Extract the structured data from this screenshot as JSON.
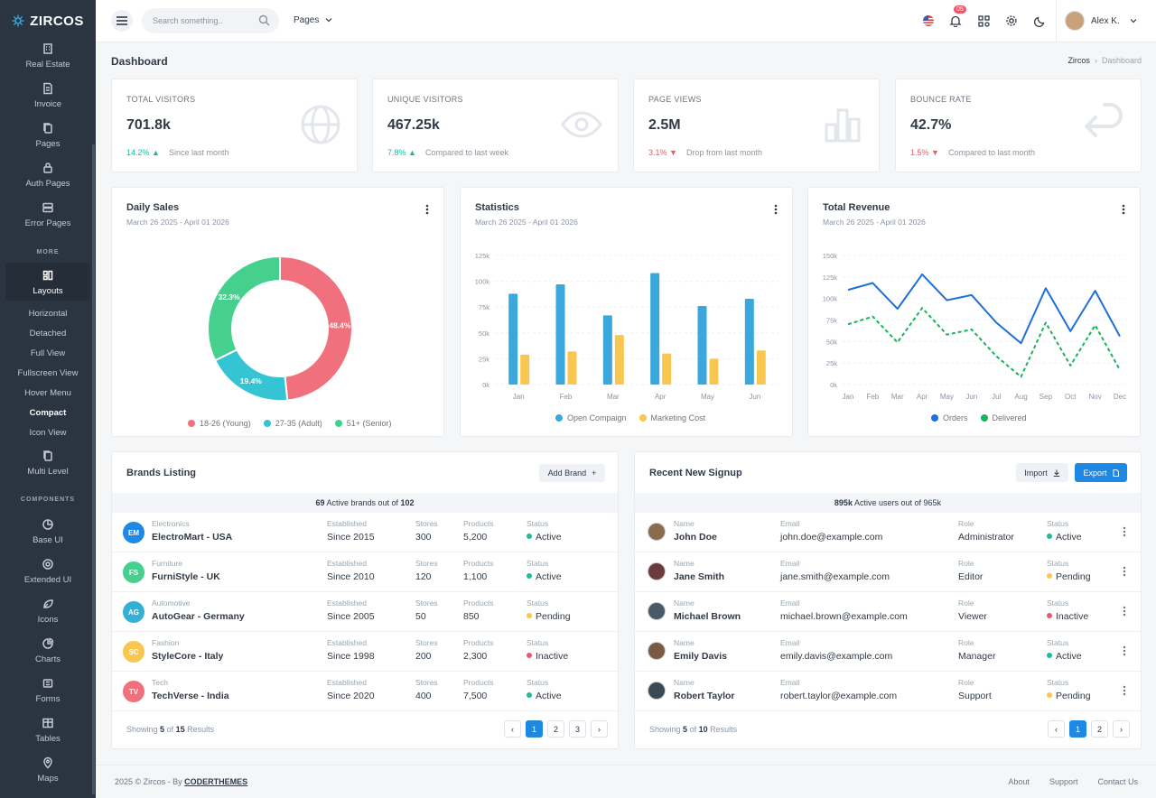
{
  "brand": {
    "name": "ZIRCOS"
  },
  "sidebar": {
    "items": [
      {
        "label": "Real Estate",
        "icon": "building-icon"
      },
      {
        "label": "Invoice",
        "icon": "invoice-icon"
      },
      {
        "label": "Pages",
        "icon": "pages-icon"
      },
      {
        "label": "Auth Pages",
        "icon": "lock-icon"
      },
      {
        "label": "Error Pages",
        "icon": "server-icon"
      }
    ],
    "more_heading": "MORE",
    "layouts": {
      "label": "Layouts",
      "icon": "layouts-icon"
    },
    "layout_sub": [
      "Horizontal",
      "Detached",
      "Full View",
      "Fullscreen View",
      "Hover Menu",
      "Compact",
      "Icon View"
    ],
    "multi_level": {
      "label": "Multi Level",
      "icon": "copy-icon"
    },
    "components_heading": "COMPONENTS",
    "components": [
      {
        "label": "Base UI",
        "icon": "pie-icon"
      },
      {
        "label": "Extended UI",
        "icon": "life-buoy-icon"
      },
      {
        "label": "Icons",
        "icon": "leaf-icon"
      },
      {
        "label": "Charts",
        "icon": "chart-icon"
      },
      {
        "label": "Forms",
        "icon": "form-icon"
      },
      {
        "label": "Tables",
        "icon": "table-icon"
      },
      {
        "label": "Maps",
        "icon": "map-pin-icon"
      }
    ]
  },
  "topbar": {
    "search_placeholder": "Search something..",
    "pages_label": "Pages",
    "notif_count": "05",
    "user_name": "Alex K."
  },
  "page": {
    "title": "Dashboard",
    "crumb_root": "Zircos",
    "crumb_current": "Dashboard"
  },
  "kpis": [
    {
      "label": "TOTAL VISITORS",
      "value": "701.8k",
      "delta": "14.2%",
      "dir": "up",
      "note": "Since last month",
      "icon": "globe-icon"
    },
    {
      "label": "UNIQUE VISITORS",
      "value": "467.25k",
      "delta": "7.8%",
      "dir": "up",
      "note": "Compared to last week",
      "icon": "eye-icon"
    },
    {
      "label": "PAGE VIEWS",
      "value": "2.5M",
      "delta": "3.1%",
      "dir": "down",
      "note": "Drop from last month",
      "icon": "bar-chart-icon"
    },
    {
      "label": "BOUNCE RATE",
      "value": "42.7%",
      "delta": "1.5%",
      "dir": "down",
      "note": "Compared to last month",
      "icon": "return-arrow-icon"
    }
  ],
  "charts": {
    "daily": {
      "title": "Daily Sales",
      "range": "March 26 2025 - April 01 2026"
    },
    "stats": {
      "title": "Statistics",
      "range": "March 26 2025 - April 01 2026"
    },
    "revenue": {
      "title": "Total Revenue",
      "range": "March 26 2025 - April 01 2026"
    }
  },
  "chart_data": [
    {
      "type": "pie",
      "title": "Daily Sales",
      "categories": [
        "18-26 (Young)",
        "27-35 (Adult)",
        "51+ (Senior)"
      ],
      "values": [
        48.4,
        19.4,
        32.3
      ],
      "labels": [
        "48.4%",
        "19.4%",
        "32.3%"
      ],
      "colors": [
        "#f1707e",
        "#35c4d4",
        "#45d08e"
      ]
    },
    {
      "type": "bar",
      "title": "Statistics",
      "categories": [
        "Jan",
        "Feb",
        "Mar",
        "Apr",
        "May",
        "Jun"
      ],
      "series": [
        {
          "name": "Open Compaign",
          "values": [
            88,
            97,
            67,
            108,
            76,
            83
          ],
          "color": "#3aa8dd"
        },
        {
          "name": "Marketing Cost",
          "values": [
            29,
            32,
            48,
            30,
            25,
            33
          ],
          "color": "#f9c74f"
        }
      ],
      "ylim": [
        0,
        125
      ],
      "yticks": [
        "0k",
        "25k",
        "50k",
        "75k",
        "100k",
        "125k"
      ]
    },
    {
      "type": "line",
      "title": "Total Revenue",
      "categories": [
        "Jan",
        "Feb",
        "Mar",
        "Apr",
        "May",
        "Jun",
        "Jul",
        "Aug",
        "Sep",
        "Oct",
        "Nov",
        "Dec"
      ],
      "series": [
        {
          "name": "Orders",
          "values": [
            110,
            118,
            88,
            128,
            98,
            104,
            72,
            48,
            112,
            62,
            109,
            56
          ],
          "color": "#1e6fd9",
          "dashed": false
        },
        {
          "name": "Delivered",
          "values": [
            70,
            79,
            49,
            89,
            58,
            64,
            33,
            9,
            72,
            22,
            69,
            17
          ],
          "color": "#19b35c",
          "dashed": true
        }
      ],
      "ylim": [
        0,
        150
      ],
      "yticks": [
        "0k",
        "25k",
        "50k",
        "75k",
        "100k",
        "125k",
        "150k"
      ]
    }
  ],
  "brands": {
    "title": "Brands Listing",
    "add_label": "Add Brand",
    "summary_bold": "69",
    "summary_mid": "Active brands out of",
    "summary_total": "102",
    "cols": {
      "est": "Established",
      "stores": "Stores",
      "products": "Products",
      "status": "Status"
    },
    "rows": [
      {
        "initials": "EM",
        "color": "#1e88e5",
        "category": "Electronics",
        "name": "ElectroMart - USA",
        "est": "Since 2015",
        "stores": "300",
        "products": "5,200",
        "status": "Active",
        "scolor": "#1abc9c"
      },
      {
        "initials": "FS",
        "color": "#45d08e",
        "category": "Furniture",
        "name": "FurniStyle - UK",
        "est": "Since 2010",
        "stores": "120",
        "products": "1,100",
        "status": "Active",
        "scolor": "#1abc9c"
      },
      {
        "initials": "AG",
        "color": "#35b0d4",
        "category": "Automotive",
        "name": "AutoGear - Germany",
        "est": "Since 2005",
        "stores": "50",
        "products": "850",
        "status": "Pending",
        "scolor": "#f9c74f"
      },
      {
        "initials": "SC",
        "color": "#f9c74f",
        "category": "Fashion",
        "name": "StyleCore - Italy",
        "est": "Since 1998",
        "stores": "200",
        "products": "2,300",
        "status": "Inactive",
        "scolor": "#f1556c"
      },
      {
        "initials": "TV",
        "color": "#f1707e",
        "category": "Tech",
        "name": "TechVerse - India",
        "est": "Since 2020",
        "stores": "400",
        "products": "7,500",
        "status": "Active",
        "scolor": "#1abc9c"
      }
    ],
    "showing_a": "Showing",
    "showing_n": "5",
    "showing_b": "of",
    "showing_t": "15",
    "showing_c": "Results",
    "pages": [
      "1",
      "2",
      "3"
    ]
  },
  "signups": {
    "title": "Recent New Signup",
    "import_label": "Import",
    "export_label": "Export",
    "summary_bold": "895k",
    "summary_mid": "Active users out of",
    "summary_total": "965k",
    "cols": {
      "name": "Name",
      "email": "Email",
      "role": "Role",
      "status": "Status"
    },
    "rows": [
      {
        "name": "John Doe",
        "email": "john.doe@example.com",
        "role": "Administrator",
        "status": "Active",
        "scolor": "#1abc9c",
        "avatar": "#8a6b4e"
      },
      {
        "name": "Jane Smith",
        "email": "jane.smith@example.com",
        "role": "Editor",
        "status": "Pending",
        "scolor": "#f9c74f",
        "avatar": "#6b3a3a"
      },
      {
        "name": "Michael Brown",
        "email": "michael.brown@example.com",
        "role": "Viewer",
        "status": "Inactive",
        "scolor": "#f1556c",
        "avatar": "#4a5968"
      },
      {
        "name": "Emily Davis",
        "email": "emily.davis@example.com",
        "role": "Manager",
        "status": "Active",
        "scolor": "#1abc9c",
        "avatar": "#7a5a44"
      },
      {
        "name": "Robert Taylor",
        "email": "robert.taylor@example.com",
        "role": "Support",
        "status": "Pending",
        "scolor": "#f9c74f",
        "avatar": "#3b4a55"
      }
    ],
    "showing_a": "Showing",
    "showing_n": "5",
    "showing_b": "of",
    "showing_t": "10",
    "showing_c": "Results",
    "pages": [
      "1",
      "2"
    ]
  },
  "footer": {
    "copy": "2025 © Zircos - By",
    "author": "CODERTHEMES",
    "links": [
      "About",
      "Support",
      "Contact Us"
    ]
  }
}
